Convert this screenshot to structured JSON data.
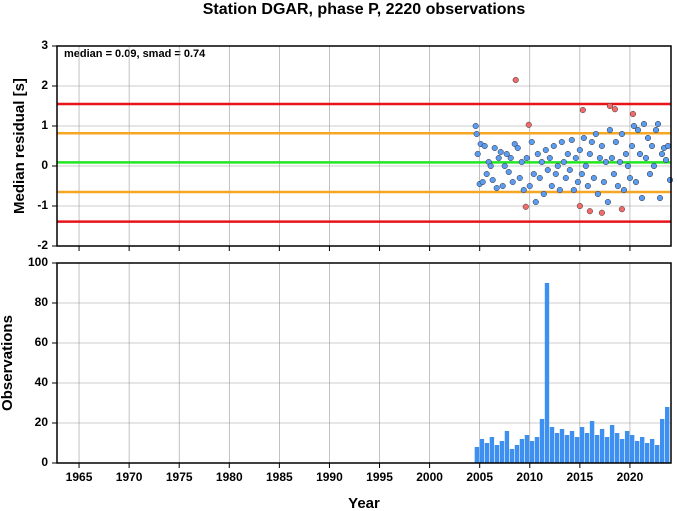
{
  "chart_data": [
    {
      "type": "scatter",
      "title": "Station DGAR, phase P, 2220 observations",
      "annotation": "median = 0.09, smad = 0.74",
      "ylabel": "Median residual [s]",
      "xlim": [
        1962.8,
        2024.1
      ],
      "xticks": [
        1965,
        1970,
        1975,
        1980,
        1985,
        1990,
        1995,
        2000,
        2005,
        2010,
        2015,
        2020
      ],
      "ylim": [
        -2,
        3
      ],
      "yticks": [
        -2,
        -1,
        0,
        1,
        2,
        3
      ],
      "grid": true,
      "hlines": [
        {
          "value": 1.55,
          "color": "#e8141a"
        },
        {
          "value": 0.82,
          "color": "#f5a623"
        },
        {
          "value": 0.09,
          "color": "#22e622"
        },
        {
          "value": -0.65,
          "color": "#f5a623"
        },
        {
          "value": -1.39,
          "color": "#e8141a"
        }
      ],
      "series": [
        {
          "color": "#5b9bf0",
          "x": [
            2004.6,
            2004.7,
            2004.8,
            2005.0,
            2005.1,
            2005.3,
            2005.5,
            2005.7,
            2005.9,
            2006.1,
            2006.3,
            2006.5,
            2006.7,
            2006.9,
            2007.1,
            2007.3,
            2007.5,
            2007.7,
            2007.9,
            2008.1,
            2008.3,
            2008.5,
            2008.8,
            2009.0,
            2009.2,
            2009.4,
            2009.7,
            2010.0,
            2010.2,
            2010.4,
            2010.6,
            2010.8,
            2011.0,
            2011.2,
            2011.4,
            2011.6,
            2011.8,
            2012.0,
            2012.2,
            2012.4,
            2012.6,
            2012.8,
            2013.0,
            2013.2,
            2013.4,
            2013.6,
            2013.8,
            2014.0,
            2014.2,
            2014.4,
            2014.6,
            2014.8,
            2015.0,
            2015.2,
            2015.4,
            2015.6,
            2015.8,
            2016.0,
            2016.2,
            2016.4,
            2016.6,
            2016.8,
            2017.0,
            2017.2,
            2017.4,
            2017.6,
            2017.8,
            2018.0,
            2018.2,
            2018.4,
            2018.6,
            2018.8,
            2019.0,
            2019.2,
            2019.4,
            2019.6,
            2019.8,
            2020.0,
            2020.2,
            2020.4,
            2020.6,
            2020.8,
            2021.0,
            2021.2,
            2021.4,
            2021.6,
            2021.8,
            2022.0,
            2022.2,
            2022.4,
            2022.6,
            2022.8,
            2023.0,
            2023.2,
            2023.4,
            2023.6,
            2023.8,
            2024.0
          ],
          "values": [
            1.0,
            0.8,
            0.3,
            -0.45,
            0.55,
            -0.4,
            0.5,
            -0.2,
            0.1,
            0.0,
            -0.35,
            0.45,
            -0.55,
            0.2,
            0.35,
            -0.5,
            0.0,
            0.3,
            -0.15,
            0.2,
            -0.4,
            0.55,
            0.45,
            -0.3,
            0.1,
            -0.6,
            0.2,
            -0.5,
            0.6,
            -0.2,
            -0.9,
            0.3,
            -0.3,
            0.1,
            -0.7,
            0.4,
            -0.1,
            0.2,
            -0.5,
            0.5,
            -0.2,
            0.0,
            -0.6,
            0.6,
            0.1,
            -0.3,
            0.3,
            -0.1,
            0.65,
            -0.6,
            0.2,
            -0.4,
            0.4,
            -0.2,
            0.7,
            0.0,
            -0.5,
            0.3,
            0.6,
            -0.3,
            0.8,
            -0.7,
            0.2,
            0.5,
            -0.4,
            0.1,
            -0.9,
            0.9,
            0.2,
            -0.2,
            0.6,
            -0.5,
            0.1,
            0.8,
            -0.6,
            0.3,
            0.0,
            -0.3,
            0.5,
            1.0,
            -0.4,
            0.9,
            0.3,
            -0.8,
            1.05,
            0.2,
            0.7,
            -0.2,
            0.5,
            0.0,
            0.9,
            1.05,
            -0.8,
            0.3,
            0.45,
            0.15,
            0.5,
            -0.35
          ]
        },
        {
          "color": "#f26b6b",
          "x": [
            2008.6,
            2009.9,
            2009.6,
            2015.3,
            2015.0,
            2016.0,
            2017.2,
            2018.0,
            2018.5,
            2019.2,
            2020.3
          ],
          "values": [
            2.15,
            1.03,
            -1.02,
            1.4,
            -1.0,
            -1.13,
            -1.17,
            1.5,
            1.42,
            -1.08,
            1.3
          ]
        }
      ]
    },
    {
      "type": "histogram",
      "ylabel": "Observations",
      "xlabel": "Year",
      "color": "#3d8ff0",
      "xlim": [
        1962.8,
        2024.1
      ],
      "xticks": [
        1965,
        1970,
        1975,
        1980,
        1985,
        1990,
        1995,
        2000,
        2005,
        2010,
        2015,
        2020
      ],
      "ylim": [
        0,
        100
      ],
      "yticks": [
        0,
        20,
        40,
        60,
        80,
        100
      ],
      "grid": true,
      "bins": [
        2004.5,
        2005,
        2005.5,
        2006,
        2006.5,
        2007,
        2007.5,
        2008,
        2008.5,
        2009,
        2009.5,
        2010,
        2010.5,
        2011,
        2011.5,
        2012,
        2012.5,
        2013,
        2013.5,
        2014,
        2014.5,
        2015,
        2015.5,
        2016,
        2016.5,
        2017,
        2017.5,
        2018,
        2018.5,
        2019,
        2019.5,
        2020,
        2020.5,
        2021,
        2021.5,
        2022,
        2022.5,
        2023,
        2023.5,
        2024
      ],
      "values": [
        8,
        12,
        10,
        13,
        9,
        11,
        16,
        7,
        9,
        12,
        14,
        11,
        13,
        22,
        90,
        18,
        15,
        17,
        14,
        16,
        13,
        18,
        15,
        21,
        14,
        17,
        13,
        19,
        15,
        12,
        16,
        14,
        11,
        13,
        10,
        12,
        9,
        22,
        28
      ]
    }
  ]
}
